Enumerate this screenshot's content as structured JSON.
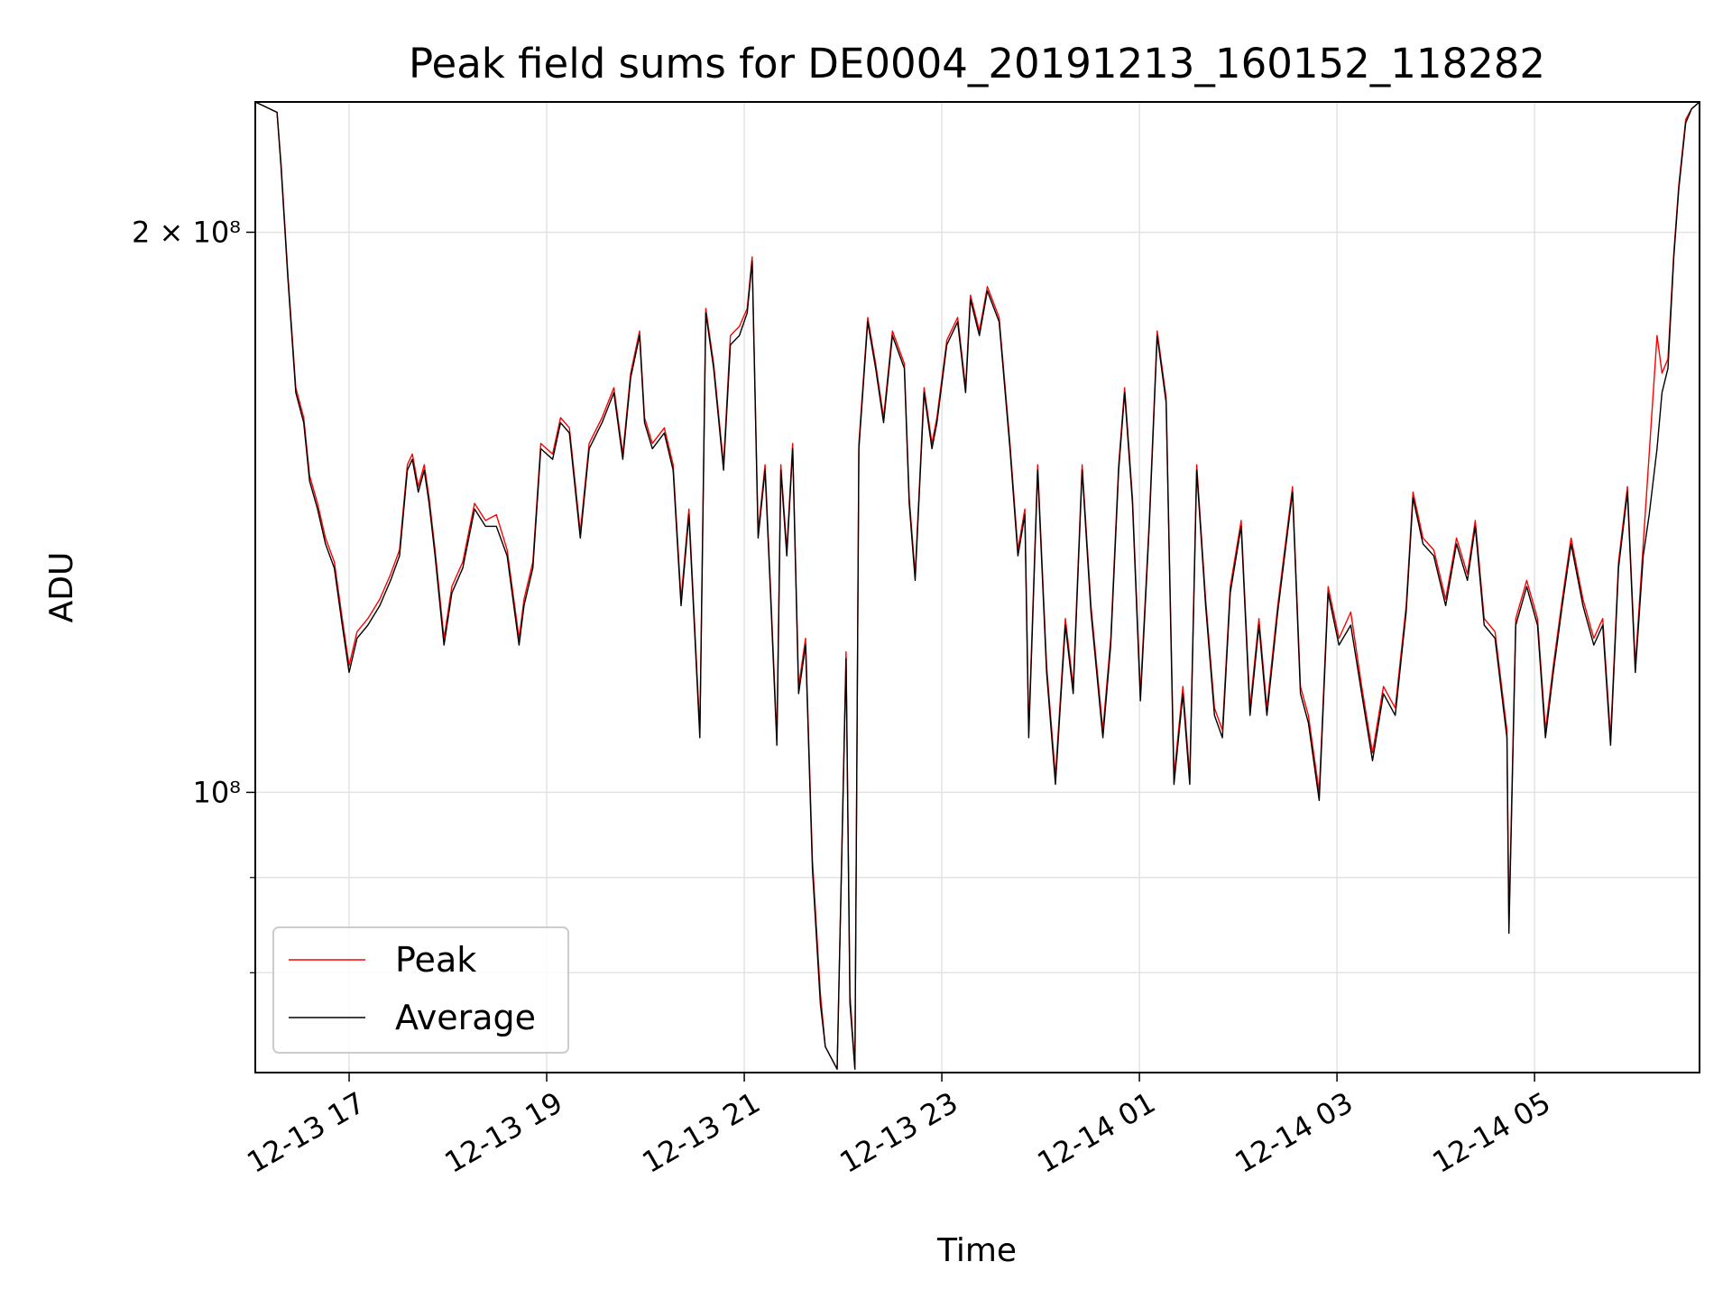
{
  "chart_data": {
    "type": "line",
    "title": "Peak field sums for DE0004_20191213_160152_118282",
    "xlabel": "Time",
    "ylabel": "ADU",
    "yscale": "log",
    "y_unit_multiplier": 100000000,
    "xlim_hours": [
      16.05,
      30.67
    ],
    "ylim": [
      0.707,
      2.35
    ],
    "grid": true,
    "legend_position": "lower-left",
    "x_ticks": [
      {
        "hour": 17,
        "label": "12-13 17"
      },
      {
        "hour": 19,
        "label": "12-13 19"
      },
      {
        "hour": 21,
        "label": "12-13 21"
      },
      {
        "hour": 23,
        "label": "12-13 23"
      },
      {
        "hour": 25,
        "label": "12-14 01"
      },
      {
        "hour": 27,
        "label": "12-14 03"
      },
      {
        "hour": 29,
        "label": "12-14 05"
      }
    ],
    "y_major_ticks": [
      {
        "value": 1.0,
        "label": "10⁸"
      },
      {
        "value": 2.0,
        "label": "2 × 10⁸"
      }
    ],
    "y_minor_ticks": [
      0.8,
      0.9
    ],
    "series": [
      {
        "name": "Peak",
        "color": "#ff0000",
        "column": 2
      },
      {
        "name": "Average",
        "color": "#000000",
        "column": 1
      }
    ],
    "columns": [
      "time_hours",
      "average",
      "peak"
    ],
    "samples": [
      [
        16.05,
        2.35,
        2.35
      ],
      [
        16.27,
        2.32,
        2.32
      ],
      [
        16.31,
        2.17,
        2.18
      ],
      [
        16.38,
        1.89,
        1.9
      ],
      [
        16.46,
        1.64,
        1.65
      ],
      [
        16.54,
        1.58,
        1.59
      ],
      [
        16.6,
        1.47,
        1.48
      ],
      [
        16.68,
        1.42,
        1.43
      ],
      [
        16.76,
        1.36,
        1.37
      ],
      [
        16.85,
        1.32,
        1.33
      ],
      [
        16.93,
        1.23,
        1.24
      ],
      [
        17.0,
        1.16,
        1.17
      ],
      [
        17.08,
        1.21,
        1.22
      ],
      [
        17.19,
        1.23,
        1.24
      ],
      [
        17.31,
        1.26,
        1.27
      ],
      [
        17.42,
        1.3,
        1.31
      ],
      [
        17.51,
        1.34,
        1.35
      ],
      [
        17.59,
        1.49,
        1.5
      ],
      [
        17.64,
        1.51,
        1.52
      ],
      [
        17.7,
        1.45,
        1.46
      ],
      [
        17.76,
        1.49,
        1.5
      ],
      [
        17.81,
        1.43,
        1.44
      ],
      [
        17.87,
        1.34,
        1.35
      ],
      [
        17.96,
        1.2,
        1.21
      ],
      [
        18.04,
        1.28,
        1.29
      ],
      [
        18.15,
        1.32,
        1.33
      ],
      [
        18.27,
        1.42,
        1.43
      ],
      [
        18.38,
        1.39,
        1.4
      ],
      [
        18.49,
        1.39,
        1.41
      ],
      [
        18.6,
        1.34,
        1.35
      ],
      [
        18.72,
        1.2,
        1.21
      ],
      [
        18.77,
        1.26,
        1.27
      ],
      [
        18.86,
        1.32,
        1.33
      ],
      [
        18.94,
        1.53,
        1.54
      ],
      [
        19.06,
        1.51,
        1.52
      ],
      [
        19.14,
        1.58,
        1.59
      ],
      [
        19.23,
        1.56,
        1.57
      ],
      [
        19.34,
        1.37,
        1.38
      ],
      [
        19.43,
        1.53,
        1.54
      ],
      [
        19.56,
        1.58,
        1.59
      ],
      [
        19.68,
        1.64,
        1.65
      ],
      [
        19.77,
        1.51,
        1.52
      ],
      [
        19.85,
        1.67,
        1.68
      ],
      [
        19.94,
        1.76,
        1.77
      ],
      [
        19.99,
        1.58,
        1.59
      ],
      [
        20.07,
        1.53,
        1.54
      ],
      [
        20.19,
        1.56,
        1.57
      ],
      [
        20.28,
        1.49,
        1.5
      ],
      [
        20.36,
        1.26,
        1.27
      ],
      [
        20.44,
        1.41,
        1.42
      ],
      [
        20.55,
        1.07,
        1.08
      ],
      [
        20.61,
        1.81,
        1.82
      ],
      [
        20.69,
        1.69,
        1.7
      ],
      [
        20.79,
        1.49,
        1.5
      ],
      [
        20.86,
        1.74,
        1.76
      ],
      [
        20.95,
        1.76,
        1.78
      ],
      [
        21.03,
        1.81,
        1.82
      ],
      [
        21.08,
        1.93,
        1.94
      ],
      [
        21.14,
        1.37,
        1.38
      ],
      [
        21.21,
        1.49,
        1.5
      ],
      [
        21.26,
        1.3,
        1.31
      ],
      [
        21.33,
        1.06,
        1.07
      ],
      [
        21.37,
        1.49,
        1.5
      ],
      [
        21.43,
        1.34,
        1.35
      ],
      [
        21.49,
        1.53,
        1.54
      ],
      [
        21.55,
        1.13,
        1.14
      ],
      [
        21.62,
        1.2,
        1.21
      ],
      [
        21.69,
        0.91,
        0.92
      ],
      [
        21.77,
        0.77,
        0.78
      ],
      [
        21.82,
        0.73,
        0.73
      ],
      [
        21.94,
        0.71,
        0.71
      ],
      [
        22.03,
        1.18,
        1.19
      ],
      [
        22.07,
        0.77,
        0.78
      ],
      [
        22.12,
        0.71,
        0.71
      ],
      [
        22.16,
        1.53,
        1.54
      ],
      [
        22.25,
        1.79,
        1.8
      ],
      [
        22.33,
        1.69,
        1.7
      ],
      [
        22.41,
        1.58,
        1.59
      ],
      [
        22.5,
        1.76,
        1.77
      ],
      [
        22.62,
        1.69,
        1.7
      ],
      [
        22.67,
        1.43,
        1.44
      ],
      [
        22.73,
        1.3,
        1.31
      ],
      [
        22.82,
        1.64,
        1.65
      ],
      [
        22.9,
        1.53,
        1.54
      ],
      [
        22.95,
        1.58,
        1.59
      ],
      [
        23.05,
        1.74,
        1.75
      ],
      [
        23.16,
        1.79,
        1.8
      ],
      [
        23.24,
        1.64,
        1.65
      ],
      [
        23.29,
        1.84,
        1.85
      ],
      [
        23.38,
        1.76,
        1.77
      ],
      [
        23.46,
        1.86,
        1.87
      ],
      [
        23.58,
        1.79,
        1.8
      ],
      [
        23.69,
        1.53,
        1.54
      ],
      [
        23.77,
        1.34,
        1.35
      ],
      [
        23.84,
        1.41,
        1.42
      ],
      [
        23.88,
        1.07,
        1.08
      ],
      [
        23.97,
        1.49,
        1.5
      ],
      [
        24.06,
        1.16,
        1.17
      ],
      [
        24.15,
        1.01,
        1.02
      ],
      [
        24.25,
        1.23,
        1.24
      ],
      [
        24.33,
        1.13,
        1.14
      ],
      [
        24.42,
        1.49,
        1.5
      ],
      [
        24.51,
        1.25,
        1.26
      ],
      [
        24.63,
        1.07,
        1.08
      ],
      [
        24.71,
        1.2,
        1.21
      ],
      [
        24.79,
        1.49,
        1.5
      ],
      [
        24.85,
        1.64,
        1.65
      ],
      [
        24.93,
        1.43,
        1.44
      ],
      [
        25.01,
        1.12,
        1.13
      ],
      [
        25.1,
        1.39,
        1.4
      ],
      [
        25.18,
        1.76,
        1.77
      ],
      [
        25.27,
        1.62,
        1.63
      ],
      [
        25.35,
        1.01,
        1.02
      ],
      [
        25.44,
        1.13,
        1.14
      ],
      [
        25.51,
        1.01,
        1.02
      ],
      [
        25.58,
        1.49,
        1.5
      ],
      [
        25.67,
        1.26,
        1.27
      ],
      [
        25.76,
        1.1,
        1.11
      ],
      [
        25.84,
        1.07,
        1.08
      ],
      [
        25.92,
        1.28,
        1.29
      ],
      [
        26.03,
        1.39,
        1.4
      ],
      [
        26.12,
        1.1,
        1.11
      ],
      [
        26.21,
        1.23,
        1.24
      ],
      [
        26.29,
        1.1,
        1.11
      ],
      [
        26.4,
        1.25,
        1.26
      ],
      [
        26.55,
        1.45,
        1.46
      ],
      [
        26.63,
        1.13,
        1.14
      ],
      [
        26.71,
        1.09,
        1.1
      ],
      [
        26.82,
        0.99,
        1.0
      ],
      [
        26.91,
        1.28,
        1.29
      ],
      [
        27.02,
        1.2,
        1.21
      ],
      [
        27.14,
        1.23,
        1.25
      ],
      [
        27.25,
        1.13,
        1.14
      ],
      [
        27.36,
        1.04,
        1.05
      ],
      [
        27.47,
        1.13,
        1.14
      ],
      [
        27.59,
        1.1,
        1.11
      ],
      [
        27.7,
        1.25,
        1.26
      ],
      [
        27.77,
        1.44,
        1.45
      ],
      [
        27.87,
        1.36,
        1.37
      ],
      [
        27.98,
        1.34,
        1.35
      ],
      [
        28.1,
        1.26,
        1.27
      ],
      [
        28.21,
        1.36,
        1.37
      ],
      [
        28.32,
        1.3,
        1.31
      ],
      [
        28.4,
        1.39,
        1.4
      ],
      [
        28.49,
        1.23,
        1.24
      ],
      [
        28.6,
        1.21,
        1.22
      ],
      [
        28.72,
        1.07,
        1.08
      ],
      [
        28.74,
        0.84,
        0.85
      ],
      [
        28.81,
        1.23,
        1.24
      ],
      [
        28.92,
        1.29,
        1.3
      ],
      [
        29.03,
        1.23,
        1.24
      ],
      [
        29.11,
        1.07,
        1.08
      ],
      [
        29.19,
        1.16,
        1.17
      ],
      [
        29.28,
        1.26,
        1.27
      ],
      [
        29.37,
        1.36,
        1.37
      ],
      [
        29.49,
        1.26,
        1.27
      ],
      [
        29.6,
        1.2,
        1.21
      ],
      [
        29.69,
        1.23,
        1.24
      ],
      [
        29.77,
        1.06,
        1.07
      ],
      [
        29.85,
        1.32,
        1.33
      ],
      [
        29.94,
        1.45,
        1.46
      ],
      [
        30.02,
        1.16,
        1.17
      ],
      [
        30.1,
        1.34,
        1.36
      ],
      [
        30.16,
        1.41,
        1.52
      ],
      [
        30.24,
        1.53,
        1.76
      ],
      [
        30.29,
        1.64,
        1.68
      ],
      [
        30.35,
        1.69,
        1.71
      ],
      [
        30.41,
        1.94,
        1.95
      ],
      [
        30.46,
        2.11,
        2.12
      ],
      [
        30.53,
        2.29,
        2.3
      ],
      [
        30.59,
        2.33,
        2.33
      ],
      [
        30.67,
        2.35,
        2.35
      ]
    ]
  }
}
